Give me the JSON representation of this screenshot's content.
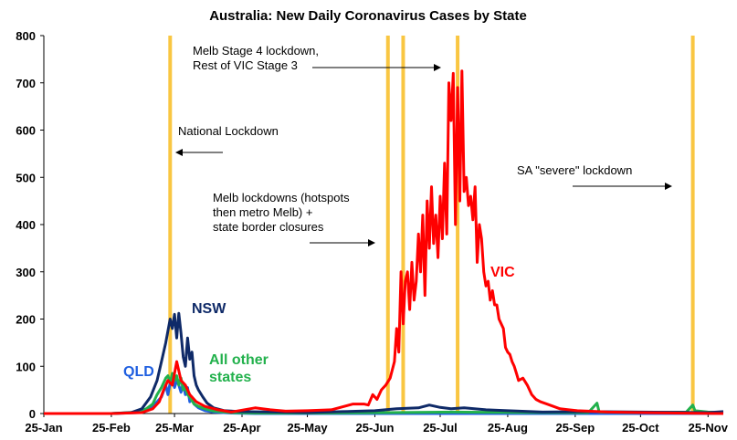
{
  "chart_data": {
    "type": "line",
    "title": "Australia: New Daily Coronavirus Cases by State",
    "xlabel": "",
    "ylabel": "",
    "ylim": [
      0,
      800
    ],
    "yticks": [
      0,
      100,
      200,
      300,
      400,
      500,
      600,
      700,
      800
    ],
    "xlim": [
      "2020-01-25",
      "2020-12-02"
    ],
    "xticks": [
      {
        "date": "2020-01-25",
        "label": "25-Jan"
      },
      {
        "date": "2020-02-25",
        "label": "25-Feb"
      },
      {
        "date": "2020-03-25",
        "label": "25-Mar"
      },
      {
        "date": "2020-04-25",
        "label": "25-Apr"
      },
      {
        "date": "2020-05-25",
        "label": "25-May"
      },
      {
        "date": "2020-06-25",
        "label": "25-Jun"
      },
      {
        "date": "2020-07-25",
        "label": "25-Jul"
      },
      {
        "date": "2020-08-25",
        "label": "25-Aug"
      },
      {
        "date": "2020-09-25",
        "label": "25-Sep"
      },
      {
        "date": "2020-10-25",
        "label": "25-Oct"
      },
      {
        "date": "2020-11-25",
        "label": "25-Nov"
      }
    ],
    "grid": false,
    "legend": "none",
    "lockdowns": [
      "2020-03-23",
      "2020-07-01",
      "2020-07-08",
      "2020-08-02",
      "2020-11-18"
    ],
    "annotations": [
      {
        "lines": [
          "Melb Stage 4 lockdown,",
          "Rest of VIC Stage 3"
        ],
        "arrow_direction": "right"
      },
      {
        "lines": [
          "National Lockdown"
        ],
        "arrow_direction": "left"
      },
      {
        "lines": [
          "Melb lockdowns (hotspots",
          "then metro Melb) +",
          "state border closures"
        ],
        "arrow_direction": "right"
      },
      {
        "lines": [
          "SA \"severe\" lockdown"
        ],
        "arrow_direction": "right"
      }
    ],
    "series": [
      {
        "name": "NSW",
        "label_lines": [
          "NSW"
        ],
        "color": "#0f2a68",
        "points": [
          [
            "2020-01-25",
            0
          ],
          [
            "2020-02-25",
            0
          ],
          [
            "2020-03-05",
            2
          ],
          [
            "2020-03-10",
            10
          ],
          [
            "2020-03-14",
            35
          ],
          [
            "2020-03-17",
            70
          ],
          [
            "2020-03-19",
            110
          ],
          [
            "2020-03-21",
            150
          ],
          [
            "2020-03-22",
            175
          ],
          [
            "2020-03-23",
            200
          ],
          [
            "2020-03-24",
            180
          ],
          [
            "2020-03-25",
            210
          ],
          [
            "2020-03-26",
            160
          ],
          [
            "2020-03-27",
            212
          ],
          [
            "2020-03-28",
            170
          ],
          [
            "2020-03-29",
            120
          ],
          [
            "2020-03-30",
            100
          ],
          [
            "2020-03-31",
            160
          ],
          [
            "2020-04-01",
            115
          ],
          [
            "2020-04-02",
            130
          ],
          [
            "2020-04-03",
            80
          ],
          [
            "2020-04-04",
            60
          ],
          [
            "2020-04-05",
            50
          ],
          [
            "2020-04-07",
            35
          ],
          [
            "2020-04-09",
            22
          ],
          [
            "2020-04-12",
            12
          ],
          [
            "2020-04-17",
            6
          ],
          [
            "2020-04-25",
            4
          ],
          [
            "2020-05-10",
            3
          ],
          [
            "2020-05-25",
            2
          ],
          [
            "2020-06-10",
            4
          ],
          [
            "2020-06-25",
            6
          ],
          [
            "2020-07-05",
            10
          ],
          [
            "2020-07-15",
            12
          ],
          [
            "2020-07-20",
            18
          ],
          [
            "2020-07-25",
            13
          ],
          [
            "2020-07-30",
            10
          ],
          [
            "2020-08-05",
            12
          ],
          [
            "2020-08-15",
            8
          ],
          [
            "2020-08-25",
            6
          ],
          [
            "2020-09-10",
            3
          ],
          [
            "2020-10-01",
            4
          ],
          [
            "2020-10-25",
            3
          ],
          [
            "2020-11-25",
            2
          ],
          [
            "2020-12-02",
            4
          ]
        ]
      },
      {
        "name": "VIC",
        "label_lines": [
          "VIC"
        ],
        "color": "#ff0000",
        "points": [
          [
            "2020-01-25",
            0
          ],
          [
            "2020-02-25",
            0
          ],
          [
            "2020-03-10",
            2
          ],
          [
            "2020-03-15",
            10
          ],
          [
            "2020-03-18",
            25
          ],
          [
            "2020-03-20",
            50
          ],
          [
            "2020-03-22",
            70
          ],
          [
            "2020-03-24",
            60
          ],
          [
            "2020-03-26",
            110
          ],
          [
            "2020-03-28",
            70
          ],
          [
            "2020-03-30",
            60
          ],
          [
            "2020-04-01",
            40
          ],
          [
            "2020-04-04",
            25
          ],
          [
            "2020-04-08",
            15
          ],
          [
            "2020-04-14",
            8
          ],
          [
            "2020-04-20",
            3
          ],
          [
            "2020-05-01",
            12
          ],
          [
            "2020-05-08",
            8
          ],
          [
            "2020-05-15",
            5
          ],
          [
            "2020-05-25",
            6
          ],
          [
            "2020-06-05",
            8
          ],
          [
            "2020-06-15",
            20
          ],
          [
            "2020-06-20",
            20
          ],
          [
            "2020-06-22",
            18
          ],
          [
            "2020-06-24",
            40
          ],
          [
            "2020-06-26",
            30
          ],
          [
            "2020-06-28",
            50
          ],
          [
            "2020-06-30",
            60
          ],
          [
            "2020-07-02",
            75
          ],
          [
            "2020-07-04",
            110
          ],
          [
            "2020-07-05",
            180
          ],
          [
            "2020-07-06",
            130
          ],
          [
            "2020-07-07",
            300
          ],
          [
            "2020-07-08",
            190
          ],
          [
            "2020-07-09",
            280
          ],
          [
            "2020-07-10",
            300
          ],
          [
            "2020-07-11",
            220
          ],
          [
            "2020-07-12",
            320
          ],
          [
            "2020-07-13",
            240
          ],
          [
            "2020-07-14",
            280
          ],
          [
            "2020-07-15",
            380
          ],
          [
            "2020-07-16",
            300
          ],
          [
            "2020-07-17",
            420
          ],
          [
            "2020-07-18",
            250
          ],
          [
            "2020-07-19",
            450
          ],
          [
            "2020-07-20",
            350
          ],
          [
            "2020-07-21",
            480
          ],
          [
            "2020-07-22",
            360
          ],
          [
            "2020-07-23",
            420
          ],
          [
            "2020-07-24",
            330
          ],
          [
            "2020-07-25",
            460
          ],
          [
            "2020-07-26",
            370
          ],
          [
            "2020-07-27",
            530
          ],
          [
            "2020-07-28",
            380
          ],
          [
            "2020-07-29",
            700
          ],
          [
            "2020-07-30",
            620
          ],
          [
            "2020-07-31",
            720
          ],
          [
            "2020-08-01",
            400
          ],
          [
            "2020-08-02",
            690
          ],
          [
            "2020-08-03",
            450
          ],
          [
            "2020-08-04",
            725
          ],
          [
            "2020-08-05",
            470
          ],
          [
            "2020-08-06",
            500
          ],
          [
            "2020-08-07",
            440
          ],
          [
            "2020-08-08",
            460
          ],
          [
            "2020-08-09",
            410
          ],
          [
            "2020-08-10",
            480
          ],
          [
            "2020-08-11",
            320
          ],
          [
            "2020-08-12",
            400
          ],
          [
            "2020-08-13",
            370
          ],
          [
            "2020-08-14",
            300
          ],
          [
            "2020-08-15",
            270
          ],
          [
            "2020-08-16",
            280
          ],
          [
            "2020-08-17",
            240
          ],
          [
            "2020-08-18",
            260
          ],
          [
            "2020-08-19",
            230
          ],
          [
            "2020-08-20",
            230
          ],
          [
            "2020-08-21",
            200
          ],
          [
            "2020-08-22",
            190
          ],
          [
            "2020-08-23",
            180
          ],
          [
            "2020-08-24",
            140
          ],
          [
            "2020-08-25",
            130
          ],
          [
            "2020-08-26",
            125
          ],
          [
            "2020-08-27",
            110
          ],
          [
            "2020-08-28",
            100
          ],
          [
            "2020-08-29",
            85
          ],
          [
            "2020-08-30",
            70
          ],
          [
            "2020-09-01",
            75
          ],
          [
            "2020-09-03",
            60
          ],
          [
            "2020-09-05",
            40
          ],
          [
            "2020-09-07",
            30
          ],
          [
            "2020-09-09",
            25
          ],
          [
            "2020-09-12",
            20
          ],
          [
            "2020-09-15",
            15
          ],
          [
            "2020-09-18",
            10
          ],
          [
            "2020-09-22",
            8
          ],
          [
            "2020-09-26",
            6
          ],
          [
            "2020-10-01",
            5
          ],
          [
            "2020-10-10",
            3
          ],
          [
            "2020-10-25",
            2
          ],
          [
            "2020-11-10",
            1
          ],
          [
            "2020-12-02",
            0
          ]
        ]
      },
      {
        "name": "QLD",
        "label_lines": [
          "QLD"
        ],
        "color": "#1f5fe0",
        "points": [
          [
            "2020-01-25",
            0
          ],
          [
            "2020-02-25",
            0
          ],
          [
            "2020-03-08",
            2
          ],
          [
            "2020-03-12",
            6
          ],
          [
            "2020-03-15",
            15
          ],
          [
            "2020-03-17",
            25
          ],
          [
            "2020-03-19",
            35
          ],
          [
            "2020-03-21",
            60
          ],
          [
            "2020-03-22",
            40
          ],
          [
            "2020-03-23",
            65
          ],
          [
            "2020-03-24",
            75
          ],
          [
            "2020-03-25",
            55
          ],
          [
            "2020-03-26",
            70
          ],
          [
            "2020-03-27",
            60
          ],
          [
            "2020-03-28",
            45
          ],
          [
            "2020-03-29",
            65
          ],
          [
            "2020-03-30",
            40
          ],
          [
            "2020-03-31",
            55
          ],
          [
            "2020-04-01",
            25
          ],
          [
            "2020-04-02",
            35
          ],
          [
            "2020-04-03",
            20
          ],
          [
            "2020-04-05",
            12
          ],
          [
            "2020-04-08",
            6
          ],
          [
            "2020-04-12",
            3
          ],
          [
            "2020-04-20",
            1
          ],
          [
            "2020-05-01",
            0
          ],
          [
            "2020-12-02",
            0
          ]
        ]
      },
      {
        "name": "All other states",
        "label_lines": [
          "All other",
          "states"
        ],
        "color": "#22b14c",
        "points": [
          [
            "2020-01-25",
            0
          ],
          [
            "2020-02-25",
            0
          ],
          [
            "2020-03-08",
            3
          ],
          [
            "2020-03-12",
            10
          ],
          [
            "2020-03-15",
            20
          ],
          [
            "2020-03-17",
            40
          ],
          [
            "2020-03-19",
            55
          ],
          [
            "2020-03-21",
            75
          ],
          [
            "2020-03-22",
            80
          ],
          [
            "2020-03-23",
            65
          ],
          [
            "2020-03-24",
            85
          ],
          [
            "2020-03-25",
            70
          ],
          [
            "2020-03-26",
            80
          ],
          [
            "2020-03-27",
            60
          ],
          [
            "2020-03-28",
            75
          ],
          [
            "2020-03-29",
            50
          ],
          [
            "2020-03-30",
            55
          ],
          [
            "2020-03-31",
            40
          ],
          [
            "2020-04-01",
            35
          ],
          [
            "2020-04-03",
            20
          ],
          [
            "2020-04-05",
            15
          ],
          [
            "2020-04-08",
            10
          ],
          [
            "2020-04-12",
            5
          ],
          [
            "2020-04-20",
            2
          ],
          [
            "2020-05-01",
            1
          ],
          [
            "2020-06-01",
            1
          ],
          [
            "2020-07-01",
            2
          ],
          [
            "2020-08-01",
            3
          ],
          [
            "2020-09-15",
            2
          ],
          [
            "2020-10-01",
            2
          ],
          [
            "2020-10-05",
            22
          ],
          [
            "2020-10-06",
            3
          ],
          [
            "2020-10-25",
            2
          ],
          [
            "2020-11-15",
            3
          ],
          [
            "2020-11-18",
            18
          ],
          [
            "2020-11-19",
            6
          ],
          [
            "2020-11-25",
            3
          ],
          [
            "2020-12-02",
            2
          ]
        ]
      }
    ]
  }
}
